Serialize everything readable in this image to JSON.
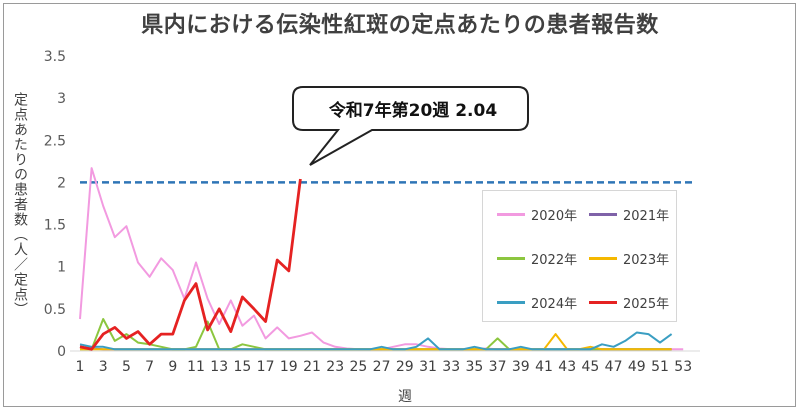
{
  "chart_data": {
    "type": "line",
    "title": "県内における伝染性紅斑の定点あたりの患者報告数",
    "xlabel": "週",
    "ylabel": "定点あたりの患者数（人／定点）",
    "ylim": [
      0,
      3.5
    ],
    "yticks": [
      "0",
      "0.5",
      "1",
      "1.5",
      "2",
      "2.5",
      "3",
      "3.5"
    ],
    "x_ticks": [
      "1",
      "3",
      "5",
      "7",
      "9",
      "11",
      "13",
      "15",
      "17",
      "19",
      "21",
      "23",
      "25",
      "27",
      "29",
      "31",
      "33",
      "35",
      "37",
      "39",
      "41",
      "43",
      "45",
      "47",
      "49",
      "51",
      "53"
    ],
    "grid": false,
    "legend_position": "right",
    "reference_line": {
      "value": 2,
      "color": "#2e75b6",
      "style": "dashed"
    },
    "annotation": "令和7年第20週 2.04",
    "series": [
      {
        "name": "2020年",
        "color": "#f29ae0",
        "values": [
          0.38,
          2.17,
          1.72,
          1.35,
          1.48,
          1.05,
          0.88,
          1.1,
          0.96,
          0.62,
          1.05,
          0.62,
          0.32,
          0.6,
          0.3,
          0.42,
          0.15,
          0.28,
          0.15,
          0.18,
          0.22,
          0.1,
          0.05,
          0.03,
          0.02,
          0.02,
          0.02,
          0.05,
          0.08,
          0.08,
          0.05,
          0.03,
          0.02,
          0.02,
          0.02,
          0.03,
          0.02,
          0.02,
          0.02,
          0.02,
          0.02,
          0.02,
          0.02,
          0.02,
          0.02,
          0.02,
          0.02,
          0.02,
          0.02,
          0.02,
          0.02,
          0.02,
          0.02
        ]
      },
      {
        "name": "2021年",
        "color": "#7f62a8",
        "values": [
          0.05,
          0.03,
          0.02,
          0.02,
          0.02,
          0.02,
          0.02,
          0.02,
          0.02,
          0.02,
          0.02,
          0.02,
          0.02,
          0.02,
          0.02,
          0.02,
          0.02,
          0.02,
          0.02,
          0.02,
          0.02,
          0.02,
          0.02,
          0.02,
          0.02,
          0.02,
          0.02,
          0.02,
          0.02,
          0.02,
          0.02,
          0.02,
          0.02,
          0.02,
          0.02,
          0.02,
          0.02,
          0.02,
          0.02,
          0.02,
          0.02,
          0.02,
          0.02,
          0.02,
          0.02,
          0.02,
          0.02,
          0.02,
          0.02,
          0.02,
          0.02,
          0.02
        ]
      },
      {
        "name": "2022年",
        "color": "#8cc63f",
        "values": [
          0.02,
          0.02,
          0.38,
          0.12,
          0.2,
          0.1,
          0.08,
          0.05,
          0.02,
          0.02,
          0.05,
          0.35,
          0.02,
          0.02,
          0.08,
          0.05,
          0.02,
          0.02,
          0.02,
          0.02,
          0.02,
          0.02,
          0.02,
          0.02,
          0.02,
          0.02,
          0.02,
          0.02,
          0.02,
          0.02,
          0.02,
          0.02,
          0.02,
          0.02,
          0.02,
          0.02,
          0.15,
          0.02,
          0.02,
          0.02,
          0.02,
          0.02,
          0.02,
          0.02,
          0.02,
          0.02,
          0.02,
          0.02,
          0.02,
          0.02,
          0.02,
          0.02
        ]
      },
      {
        "name": "2023年",
        "color": "#f5b800",
        "values": [
          0.02,
          0.02,
          0.02,
          0.02,
          0.02,
          0.02,
          0.02,
          0.02,
          0.02,
          0.02,
          0.02,
          0.02,
          0.02,
          0.02,
          0.02,
          0.02,
          0.02,
          0.02,
          0.02,
          0.02,
          0.02,
          0.02,
          0.02,
          0.02,
          0.02,
          0.02,
          0.02,
          0.02,
          0.02,
          0.02,
          0.02,
          0.02,
          0.02,
          0.02,
          0.02,
          0.02,
          0.02,
          0.02,
          0.02,
          0.02,
          0.02,
          0.2,
          0.02,
          0.02,
          0.05,
          0.02,
          0.02,
          0.02,
          0.02,
          0.02,
          0.02,
          0.02
        ]
      },
      {
        "name": "2024年",
        "color": "#3a9ec2",
        "values": [
          0.08,
          0.05,
          0.05,
          0.02,
          0.02,
          0.02,
          0.02,
          0.02,
          0.02,
          0.02,
          0.02,
          0.02,
          0.02,
          0.02,
          0.02,
          0.02,
          0.02,
          0.02,
          0.02,
          0.02,
          0.02,
          0.02,
          0.02,
          0.02,
          0.02,
          0.02,
          0.05,
          0.02,
          0.02,
          0.05,
          0.15,
          0.02,
          0.02,
          0.02,
          0.05,
          0.02,
          0.02,
          0.02,
          0.05,
          0.02,
          0.02,
          0.02,
          0.02,
          0.02,
          0.02,
          0.08,
          0.05,
          0.12,
          0.22,
          0.2,
          0.1,
          0.2
        ]
      },
      {
        "name": "2025年",
        "color": "#e52222",
        "values": [
          0.05,
          0.02,
          0.2,
          0.28,
          0.15,
          0.23,
          0.08,
          0.2,
          0.2,
          0.6,
          0.8,
          0.25,
          0.5,
          0.23,
          0.64,
          0.5,
          0.35,
          1.08,
          0.95,
          2.04
        ]
      }
    ]
  }
}
